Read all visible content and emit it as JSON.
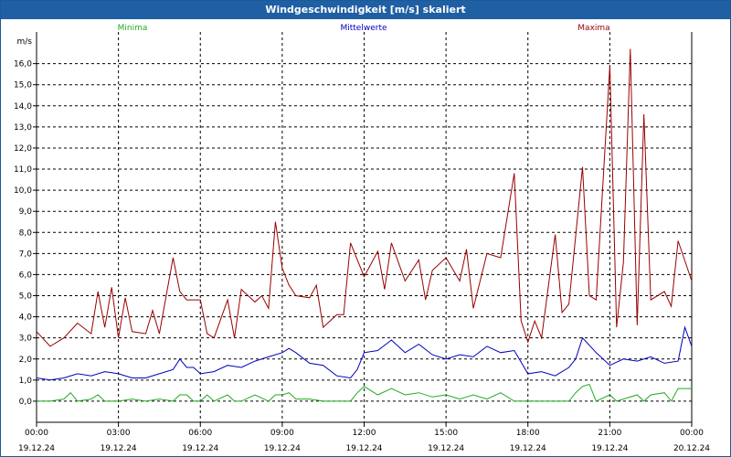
{
  "window": {
    "title": "Windgeschwindigkeit [m/s] skaliert"
  },
  "chart_data": {
    "type": "line",
    "ylabel": "m/s",
    "ylim": [
      -1.0,
      17.5
    ],
    "yticks": [
      "16,0",
      "15,0",
      "14,0",
      "13,0",
      "12,0",
      "11,0",
      "10,0",
      "9,0",
      "8,0",
      "7,0",
      "6,0",
      "5,0",
      "4,0",
      "3,0",
      "2,0",
      "1,0",
      "0,0"
    ],
    "xlim_hours": [
      0,
      24
    ],
    "xticks": [
      {
        "time": "00:00",
        "date": "19.12.24"
      },
      {
        "time": "03:00",
        "date": "19.12.24"
      },
      {
        "time": "06:00",
        "date": "19.12.24"
      },
      {
        "time": "09:00",
        "date": "19.12.24"
      },
      {
        "time": "12:00",
        "date": "19.12.24"
      },
      {
        "time": "15:00",
        "date": "19.12.24"
      },
      {
        "time": "18:00",
        "date": "19.12.24"
      },
      {
        "time": "21:00",
        "date": "19.12.24"
      },
      {
        "time": "00:00",
        "date": "20.12.24"
      }
    ],
    "grid": true,
    "legend_position": "top",
    "series": [
      {
        "name": "Minima",
        "color": "#22aa22",
        "x": [
          0,
          0.5,
          1,
          1.25,
          1.5,
          2,
          2.25,
          2.5,
          3,
          3.5,
          4,
          4.5,
          5,
          5.25,
          5.5,
          5.75,
          6,
          6.25,
          6.5,
          7,
          7.25,
          7.5,
          8,
          8.5,
          8.75,
          9,
          9.25,
          9.5,
          10,
          10.5,
          11,
          11.5,
          11.75,
          12,
          12.5,
          13,
          13.5,
          14,
          14.5,
          15,
          15.5,
          16,
          16.5,
          17,
          17.5,
          18,
          18.5,
          19,
          19.5,
          19.75,
          20,
          20.25,
          20.5,
          21,
          21.25,
          21.5,
          22,
          22.25,
          22.5,
          23,
          23.25,
          23.5,
          24
        ],
        "y": [
          0.0,
          0.0,
          0.1,
          0.4,
          0.0,
          0.1,
          0.3,
          0.0,
          0.0,
          0.1,
          0.0,
          0.1,
          0.0,
          0.3,
          0.3,
          0.0,
          0.0,
          0.3,
          0.0,
          0.3,
          0.0,
          0.0,
          0.3,
          0.0,
          0.3,
          0.3,
          0.4,
          0.1,
          0.1,
          0.0,
          0.0,
          0.0,
          0.4,
          0.7,
          0.3,
          0.6,
          0.3,
          0.4,
          0.2,
          0.3,
          0.1,
          0.3,
          0.1,
          0.4,
          0.0,
          0.0,
          0.0,
          0.0,
          0.0,
          0.4,
          0.7,
          0.8,
          0.0,
          0.3,
          0.0,
          0.1,
          0.3,
          0.0,
          0.3,
          0.4,
          0.0,
          0.6,
          0.6
        ]
      },
      {
        "name": "Mittelwerte",
        "color": "#0000bb",
        "x": [
          0,
          0.5,
          1,
          1.5,
          2,
          2.5,
          3,
          3.5,
          4,
          4.5,
          5,
          5.25,
          5.5,
          5.75,
          6,
          6.5,
          7,
          7.5,
          8,
          8.5,
          9,
          9.25,
          9.5,
          10,
          10.5,
          11,
          11.5,
          11.75,
          12,
          12.5,
          13,
          13.5,
          14,
          14.5,
          15,
          15.5,
          16,
          16.5,
          17,
          17.5,
          18,
          18.5,
          19,
          19.5,
          19.75,
          20,
          20.5,
          21,
          21.5,
          22,
          22.5,
          23,
          23.5,
          23.75,
          24
        ],
        "y": [
          1.1,
          1.0,
          1.1,
          1.3,
          1.2,
          1.4,
          1.3,
          1.1,
          1.1,
          1.3,
          1.5,
          2.0,
          1.6,
          1.6,
          1.3,
          1.4,
          1.7,
          1.6,
          1.9,
          2.1,
          2.3,
          2.5,
          2.3,
          1.8,
          1.7,
          1.2,
          1.1,
          1.5,
          2.3,
          2.4,
          2.9,
          2.3,
          2.7,
          2.2,
          2.0,
          2.2,
          2.1,
          2.6,
          2.3,
          2.4,
          1.3,
          1.4,
          1.2,
          1.6,
          2.0,
          3.0,
          2.3,
          1.7,
          2.0,
          1.9,
          2.1,
          1.8,
          1.9,
          3.5,
          2.6
        ]
      },
      {
        "name": "Maxima",
        "color": "#990000",
        "x": [
          0,
          0.5,
          1,
          1.5,
          2,
          2.25,
          2.5,
          2.75,
          3,
          3.25,
          3.5,
          4,
          4.25,
          4.5,
          5,
          5.25,
          5.5,
          6,
          6.25,
          6.5,
          7,
          7.25,
          7.5,
          8,
          8.25,
          8.5,
          8.75,
          9,
          9.25,
          9.5,
          10,
          10.25,
          10.5,
          11,
          11.25,
          11.5,
          12,
          12.5,
          12.75,
          13,
          13.5,
          14,
          14.25,
          14.5,
          15,
          15.5,
          15.75,
          16,
          16.5,
          17,
          17.5,
          17.75,
          18,
          18.25,
          18.5,
          19,
          19.25,
          19.5,
          20,
          20.25,
          20.5,
          21,
          21.25,
          21.5,
          21.75,
          22,
          22.25,
          22.5,
          23,
          23.25,
          23.5,
          24
        ],
        "y": [
          3.3,
          2.6,
          3.0,
          3.7,
          3.2,
          5.2,
          3.5,
          5.4,
          3.0,
          4.9,
          3.3,
          3.2,
          4.3,
          3.2,
          6.8,
          5.2,
          4.8,
          4.8,
          3.2,
          3.0,
          4.8,
          3.0,
          5.3,
          4.7,
          5.0,
          4.4,
          8.5,
          6.3,
          5.5,
          5.0,
          4.9,
          5.5,
          3.5,
          4.1,
          4.1,
          7.5,
          5.9,
          7.1,
          5.3,
          7.5,
          5.7,
          6.7,
          4.8,
          6.2,
          6.8,
          5.7,
          7.2,
          4.4,
          7.0,
          6.8,
          10.8,
          3.8,
          2.8,
          3.8,
          3.0,
          7.9,
          4.2,
          4.6,
          11.1,
          5.0,
          4.8,
          15.9,
          3.5,
          6.6,
          16.7,
          3.6,
          13.6,
          4.8,
          5.2,
          4.5,
          7.6,
          5.7
        ]
      }
    ]
  }
}
